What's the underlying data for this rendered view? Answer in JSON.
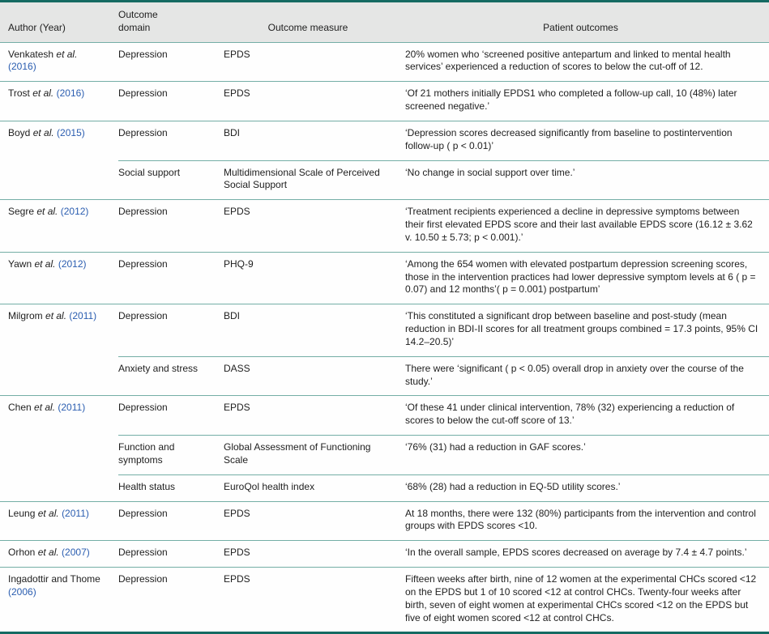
{
  "colors": {
    "rule_dark": "#156a62",
    "rule_light": "#74aea6",
    "header_bg": "#e5e6e5",
    "link_blue": "#2a5db0",
    "text": "#212121"
  },
  "table": {
    "etal_label": "et al.",
    "columns": [
      "Author (Year)",
      "Outcome\ndomain",
      "Outcome measure",
      "Patient outcomes"
    ],
    "groups": [
      {
        "author": {
          "name": "Venkatesh",
          "etal": true,
          "year": "2016"
        },
        "rows": [
          {
            "domain": "Depression",
            "measure": "EPDS",
            "outcome": "20% women who ‘screened positive antepartum and linked to mental health services’ experienced a reduction of scores to below the cut-off of 12."
          }
        ]
      },
      {
        "author": {
          "name": "Trost",
          "etal": true,
          "year": "2016"
        },
        "rows": [
          {
            "domain": "Depression",
            "measure": "EPDS",
            "outcome": "‘Of 21 mothers initially EPDS1 who completed a follow-up call, 10 (48%) later screened negative.’"
          }
        ]
      },
      {
        "author": {
          "name": "Boyd",
          "etal": true,
          "year": "2015"
        },
        "rows": [
          {
            "domain": "Depression",
            "measure": "BDI",
            "outcome": "‘Depression scores decreased significantly from baseline to postintervention follow-up ( p < 0.01)’"
          },
          {
            "domain": "Social support",
            "measure": "Multidimensional Scale of Perceived Social Support",
            "outcome": "‘No change in social support over time.’"
          }
        ]
      },
      {
        "author": {
          "name": "Segre",
          "etal": true,
          "year": "2012"
        },
        "rows": [
          {
            "domain": "Depression",
            "measure": "EPDS",
            "outcome": "‘Treatment recipients experienced a decline in depressive symptoms between their first elevated EPDS score and their last available EPDS score (16.12 ± 3.62 v. 10.50 ± 5.73; p < 0.001).’"
          }
        ]
      },
      {
        "author": {
          "name": "Yawn",
          "etal": true,
          "year": "2012"
        },
        "rows": [
          {
            "domain": "Depression",
            "measure": "PHQ-9",
            "outcome": "‘Among the 654 women with elevated postpartum depression screening scores, those in the intervention practices had lower depressive symptom levels at 6 ( p = 0.07) and 12 months’( p = 0.001) postpartum’"
          }
        ]
      },
      {
        "author": {
          "name": "Milgrom",
          "etal": true,
          "year": "2011"
        },
        "rows": [
          {
            "domain": "Depression",
            "measure": "BDI",
            "outcome": "‘This constituted a significant drop between baseline and post-study (mean reduction in BDI-II scores for all treatment groups combined = 17.3 points, 95% CI 14.2–20.5)’"
          },
          {
            "domain": "Anxiety and stress",
            "measure": "DASS",
            "outcome": "There were ‘significant ( p < 0.05) overall drop in anxiety over the course of the study.’"
          }
        ]
      },
      {
        "author": {
          "name": "Chen",
          "etal": true,
          "year": "2011"
        },
        "rows": [
          {
            "domain": "Depression",
            "measure": "EPDS",
            "outcome": "‘Of these 41 under clinical intervention, 78% (32) experiencing a reduction of scores to below the cut-off score of 13.’"
          },
          {
            "domain": "Function and symptoms",
            "measure": "Global Assessment of Functioning Scale",
            "outcome": "‘76% (31) had a reduction in GAF scores.’"
          },
          {
            "domain": "Health status",
            "measure": "EuroQol health index",
            "outcome": "‘68% (28) had a reduction in EQ-5D utility scores.’"
          }
        ]
      },
      {
        "author": {
          "name": "Leung",
          "etal": true,
          "year": "2011"
        },
        "rows": [
          {
            "domain": "Depression",
            "measure": "EPDS",
            "outcome": "At 18 months, there were 132 (80%) participants from the intervention and control groups with EPDS scores <10."
          }
        ]
      },
      {
        "author": {
          "name": "Orhon",
          "etal": true,
          "year": "2007"
        },
        "rows": [
          {
            "domain": "Depression",
            "measure": "EPDS",
            "outcome": "‘In the overall sample, EPDS scores decreased on average by 7.4 ± 4.7 points.’"
          }
        ]
      },
      {
        "author": {
          "name": "Ingadottir and Thome",
          "etal": false,
          "year": "2006"
        },
        "rows": [
          {
            "domain": "Depression",
            "measure": "EPDS",
            "outcome": "Fifteen weeks after birth, nine of 12 women at the experimental CHCs scored <12 on the EPDS but 1 of 10 scored <12 at control CHCs. Twenty-four weeks after birth, seven of eight women at experimental CHCs scored <12 on the EPDS but five of eight women scored <12 at control CHCs."
          }
        ]
      }
    ]
  }
}
